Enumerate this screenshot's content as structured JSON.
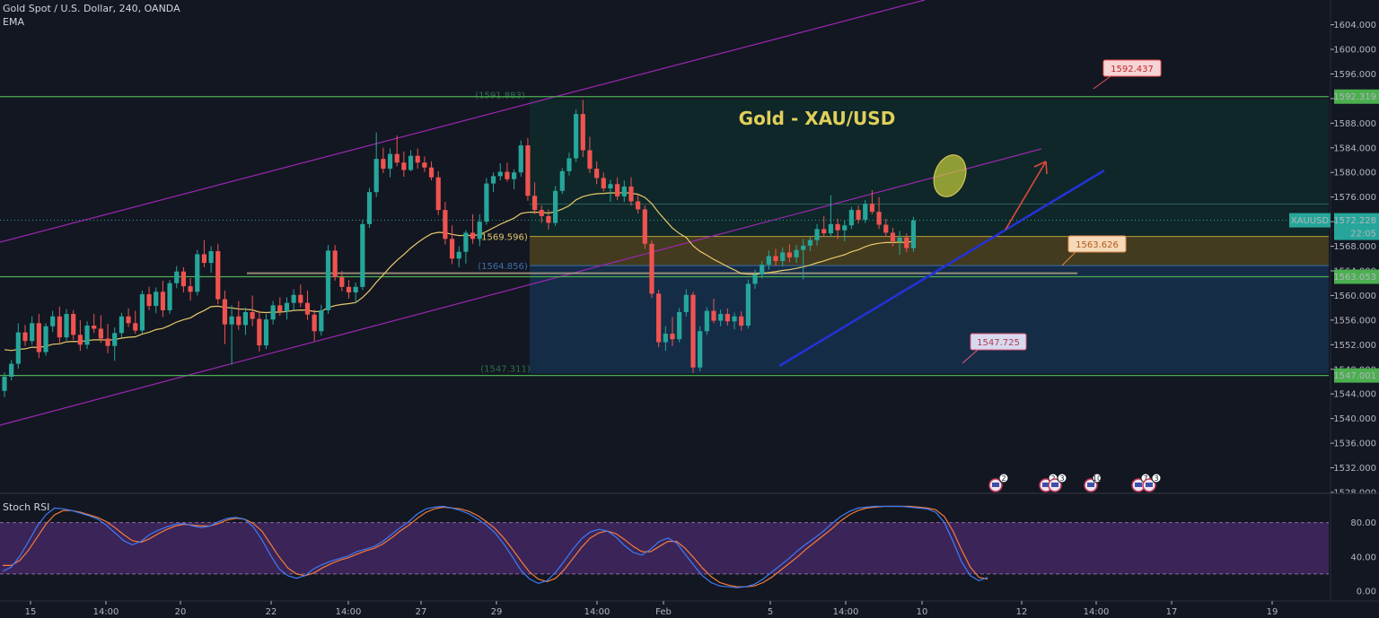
{
  "header": {
    "symbol_line": "Gold Spot / U.S. Dollar, 240, OANDA",
    "indicator": "EMA"
  },
  "rsi_panel": {
    "label": "Stoch RSI"
  },
  "colors": {
    "background": "#131722",
    "up": "#26a69a",
    "down": "#ef5350",
    "ema": "#e8c96a",
    "channel": "#9c27b0",
    "support": "#4caf50",
    "trendline": "#2432d6",
    "arrow": "#e0493a",
    "title": "#e0cf5a"
  },
  "chart_data": [
    {
      "type": "candlestick",
      "title": "Gold - XAU/USD",
      "price_axis": {
        "ticks": [
          "1604.000",
          "1600.000",
          "1596.000",
          "1592.000",
          "1588.000",
          "1584.000",
          "1580.000",
          "1576.000",
          "1572.000",
          "1568.000",
          "1564.000",
          "1560.000",
          "1556.000",
          "1552.000",
          "1548.000",
          "1544.000",
          "1540.000",
          "1536.000",
          "1532.000",
          "1528.000"
        ],
        "range": [
          1526,
          1606
        ]
      },
      "time_axis": {
        "ticks": [
          "15",
          "14:00",
          "20",
          "22",
          "14:00",
          "27",
          "29",
          "14:00",
          "Feb",
          "5",
          "14:00",
          "10",
          "12",
          "14:00",
          "17",
          "19"
        ]
      },
      "symbol_tag": {
        "label": "XAUUSD",
        "price": "1572.228",
        "countdown": "22:05"
      },
      "horizontal_levels": [
        {
          "price": 1592.319,
          "label": "1592.319"
        },
        {
          "price": 1563.053,
          "label": "1563.053"
        },
        {
          "price": 1547.001,
          "label": "1547.001"
        }
      ],
      "callouts": [
        {
          "label": "1592.437"
        },
        {
          "label": "1563.626"
        },
        {
          "label": "1547.725"
        }
      ],
      "range_labels": [
        {
          "label": "(1591.883)"
        },
        {
          "label": "(1569.596)"
        },
        {
          "label": "(1564.856)"
        },
        {
          "label": "(1547.311)"
        }
      ],
      "events": [
        {
          "count": "2"
        },
        {
          "count": "2"
        },
        {
          "count": "3"
        },
        {
          "count": "10"
        },
        {
          "count": "7"
        },
        {
          "count": "3"
        }
      ],
      "candles": [
        [
          1544.5,
          1547.5,
          1543.5,
          1546.8
        ],
        [
          1546.8,
          1549.5,
          1546.2,
          1548.9
        ],
        [
          1548.9,
          1555.5,
          1548.1,
          1554.0
        ],
        [
          1554.0,
          1555.2,
          1551.8,
          1552.6
        ],
        [
          1552.6,
          1556.6,
          1552.0,
          1555.5
        ],
        [
          1555.5,
          1557.0,
          1549.8,
          1550.8
        ],
        [
          1550.8,
          1555.5,
          1550.2,
          1555.0
        ],
        [
          1555.0,
          1557.5,
          1554.1,
          1556.6
        ],
        [
          1556.6,
          1558.2,
          1552.3,
          1553.2
        ],
        [
          1553.2,
          1557.8,
          1552.7,
          1557.0
        ],
        [
          1557.0,
          1557.6,
          1552.8,
          1553.6
        ],
        [
          1553.6,
          1556.0,
          1551.0,
          1552.0
        ],
        [
          1552.0,
          1555.8,
          1551.3,
          1555.1
        ],
        [
          1555.1,
          1557.0,
          1553.9,
          1554.6
        ],
        [
          1554.6,
          1556.8,
          1552.3,
          1553.0
        ],
        [
          1553.0,
          1555.4,
          1550.6,
          1551.8
        ],
        [
          1551.8,
          1554.8,
          1549.4,
          1553.9
        ],
        [
          1553.9,
          1557.2,
          1553.2,
          1556.6
        ],
        [
          1556.6,
          1557.9,
          1554.9,
          1555.5
        ],
        [
          1555.5,
          1557.5,
          1553.8,
          1554.3
        ],
        [
          1554.3,
          1560.8,
          1553.8,
          1560.2
        ],
        [
          1560.2,
          1561.4,
          1557.6,
          1558.3
        ],
        [
          1558.3,
          1561.3,
          1557.1,
          1560.6
        ],
        [
          1560.6,
          1562.4,
          1556.5,
          1557.6
        ],
        [
          1557.6,
          1562.5,
          1557.0,
          1562.0
        ],
        [
          1562.0,
          1564.8,
          1561.2,
          1563.9
        ],
        [
          1563.9,
          1564.6,
          1560.5,
          1561.5
        ],
        [
          1561.5,
          1562.8,
          1559.2,
          1560.6
        ],
        [
          1560.6,
          1567.4,
          1560.0,
          1566.7
        ],
        [
          1566.7,
          1569.0,
          1564.6,
          1565.3
        ],
        [
          1565.3,
          1568.0,
          1563.7,
          1567.2
        ],
        [
          1567.2,
          1568.4,
          1558.6,
          1559.4
        ],
        [
          1559.4,
          1560.8,
          1552.1,
          1555.3
        ],
        [
          1555.3,
          1558.4,
          1548.8,
          1556.6
        ],
        [
          1556.6,
          1559.1,
          1554.4,
          1555.2
        ],
        [
          1555.2,
          1558.0,
          1553.6,
          1557.3
        ],
        [
          1557.3,
          1560.0,
          1555.0,
          1556.2
        ],
        [
          1556.2,
          1557.5,
          1550.9,
          1551.9
        ],
        [
          1551.9,
          1557.0,
          1551.3,
          1556.1
        ],
        [
          1556.1,
          1559.1,
          1555.3,
          1558.4
        ],
        [
          1558.4,
          1559.7,
          1556.7,
          1557.4
        ],
        [
          1557.4,
          1559.7,
          1556.1,
          1558.8
        ],
        [
          1558.8,
          1561.0,
          1557.6,
          1560.1
        ],
        [
          1560.1,
          1561.8,
          1558.1,
          1558.8
        ],
        [
          1558.8,
          1560.8,
          1556.0,
          1556.9
        ],
        [
          1556.9,
          1557.7,
          1552.6,
          1554.2
        ],
        [
          1554.2,
          1558.5,
          1553.5,
          1557.6
        ],
        [
          1557.6,
          1568.2,
          1557.0,
          1567.3
        ],
        [
          1567.3,
          1568.2,
          1562.4,
          1563.0
        ],
        [
          1563.0,
          1564.0,
          1560.7,
          1561.4
        ],
        [
          1561.4,
          1562.5,
          1559.5,
          1560.5
        ],
        [
          1560.5,
          1562.1,
          1558.8,
          1561.4
        ],
        [
          1561.4,
          1572.3,
          1560.9,
          1571.6
        ],
        [
          1571.6,
          1577.5,
          1571.0,
          1576.8
        ],
        [
          1576.8,
          1586.5,
          1576.0,
          1582.2
        ],
        [
          1582.2,
          1584.0,
          1579.9,
          1580.6
        ],
        [
          1580.6,
          1583.9,
          1579.2,
          1583.0
        ],
        [
          1583.0,
          1586.0,
          1581.0,
          1581.6
        ],
        [
          1581.6,
          1583.4,
          1579.3,
          1580.4
        ],
        [
          1580.4,
          1583.6,
          1580.2,
          1582.7
        ],
        [
          1582.7,
          1583.9,
          1580.6,
          1581.6
        ],
        [
          1581.6,
          1582.6,
          1580.1,
          1580.8
        ],
        [
          1580.8,
          1581.8,
          1578.7,
          1579.2
        ],
        [
          1579.2,
          1580.2,
          1573.1,
          1573.9
        ],
        [
          1573.9,
          1575.2,
          1568.3,
          1569.2
        ],
        [
          1569.2,
          1571.4,
          1565.1,
          1566.0
        ],
        [
          1566.0,
          1568.0,
          1564.6,
          1567.1
        ],
        [
          1567.1,
          1570.6,
          1565.2,
          1570.2
        ],
        [
          1570.2,
          1573.2,
          1568.4,
          1569.2
        ],
        [
          1569.2,
          1573.2,
          1568.0,
          1572.0
        ],
        [
          1572.0,
          1579.1,
          1571.5,
          1578.2
        ],
        [
          1578.2,
          1580.0,
          1576.8,
          1579.4
        ],
        [
          1579.4,
          1581.5,
          1578.7,
          1580.1
        ],
        [
          1580.1,
          1581.6,
          1578.5,
          1578.9
        ],
        [
          1578.9,
          1580.5,
          1577.3,
          1580.0
        ],
        [
          1580.0,
          1585.2,
          1579.3,
          1584.4
        ],
        [
          1584.4,
          1585.6,
          1575.4,
          1576.2
        ],
        [
          1576.2,
          1578.4,
          1573.2,
          1573.9
        ],
        [
          1573.9,
          1574.6,
          1571.8,
          1572.9
        ],
        [
          1572.9,
          1574.0,
          1570.7,
          1571.8
        ],
        [
          1571.8,
          1577.8,
          1571.3,
          1577.0
        ],
        [
          1577.0,
          1580.7,
          1576.5,
          1580.2
        ],
        [
          1580.2,
          1583.2,
          1579.5,
          1582.3
        ],
        [
          1582.3,
          1590.2,
          1581.7,
          1589.5
        ],
        [
          1589.5,
          1591.8,
          1582.5,
          1583.6
        ],
        [
          1583.6,
          1585.8,
          1579.9,
          1580.6
        ],
        [
          1580.6,
          1581.8,
          1578.1,
          1579.1
        ],
        [
          1579.1,
          1580.0,
          1576.9,
          1577.4
        ],
        [
          1577.4,
          1578.8,
          1575.2,
          1578.1
        ],
        [
          1578.1,
          1579.2,
          1575.5,
          1576.1
        ],
        [
          1576.1,
          1578.7,
          1575.2,
          1577.7
        ],
        [
          1577.7,
          1579.2,
          1574.6,
          1575.3
        ],
        [
          1575.3,
          1576.4,
          1573.3,
          1574.0
        ],
        [
          1574.0,
          1574.6,
          1567.6,
          1568.4
        ],
        [
          1568.4,
          1568.9,
          1559.6,
          1560.3
        ],
        [
          1560.3,
          1560.9,
          1551.6,
          1552.4
        ],
        [
          1552.4,
          1555.0,
          1551.0,
          1553.8
        ],
        [
          1553.8,
          1556.5,
          1551.8,
          1552.9
        ],
        [
          1552.9,
          1558.0,
          1552.4,
          1557.3
        ],
        [
          1557.3,
          1561.0,
          1556.6,
          1560.1
        ],
        [
          1560.1,
          1560.6,
          1547.4,
          1548.3
        ],
        [
          1548.3,
          1555.0,
          1547.7,
          1554.2
        ],
        [
          1554.2,
          1558.1,
          1553.6,
          1557.5
        ],
        [
          1557.5,
          1559.5,
          1555.5,
          1555.9
        ],
        [
          1555.9,
          1557.7,
          1555.0,
          1557.0
        ],
        [
          1557.0,
          1557.9,
          1555.1,
          1555.8
        ],
        [
          1555.8,
          1557.2,
          1554.5,
          1556.6
        ],
        [
          1556.6,
          1557.4,
          1554.3,
          1555.1
        ],
        [
          1555.1,
          1562.6,
          1554.6,
          1561.9
        ],
        [
          1561.9,
          1564.2,
          1561.1,
          1563.4
        ],
        [
          1563.4,
          1565.6,
          1562.8,
          1565.0
        ],
        [
          1565.0,
          1567.3,
          1564.2,
          1566.4
        ],
        [
          1566.4,
          1567.6,
          1564.8,
          1565.6
        ],
        [
          1565.6,
          1567.8,
          1564.7,
          1567.0
        ],
        [
          1567.0,
          1568.3,
          1565.4,
          1566.2
        ],
        [
          1566.2,
          1568.2,
          1565.3,
          1567.4
        ],
        [
          1567.4,
          1569.2,
          1562.6,
          1568.1
        ],
        [
          1568.1,
          1569.6,
          1567.2,
          1569.0
        ],
        [
          1569.0,
          1571.6,
          1568.1,
          1570.8
        ],
        [
          1570.8,
          1572.9,
          1569.5,
          1570.1
        ],
        [
          1570.1,
          1576.3,
          1569.5,
          1571.6
        ],
        [
          1571.6,
          1572.5,
          1569.2,
          1570.6
        ],
        [
          1570.6,
          1572.3,
          1568.8,
          1571.4
        ],
        [
          1571.4,
          1574.4,
          1570.8,
          1573.9
        ],
        [
          1573.9,
          1574.6,
          1571.7,
          1572.3
        ],
        [
          1572.3,
          1575.5,
          1571.8,
          1574.9
        ],
        [
          1574.9,
          1577.1,
          1573.2,
          1573.6
        ],
        [
          1573.6,
          1576.0,
          1570.8,
          1571.5
        ],
        [
          1571.5,
          1572.5,
          1569.5,
          1570.2
        ],
        [
          1570.2,
          1571.0,
          1568.0,
          1568.8
        ],
        [
          1568.8,
          1570.5,
          1566.6,
          1569.4
        ],
        [
          1569.4,
          1570.1,
          1567.0,
          1567.7
        ],
        [
          1567.7,
          1572.8,
          1567.1,
          1572.2
        ]
      ],
      "stoch_rsi": {
        "axis_ticks": [
          "80.00",
          "40.00",
          "0.00"
        ],
        "bands": [
          20,
          80
        ],
        "k": [
          23,
          28,
          41,
          58,
          76,
          89,
          97,
          96,
          94,
          91,
          88,
          84,
          77,
          68,
          59,
          54,
          58,
          66,
          71,
          75,
          78,
          79,
          76,
          74,
          76,
          81,
          85,
          86,
          84,
          75,
          60,
          42,
          26,
          18,
          15,
          18,
          26,
          31,
          35,
          38,
          41,
          46,
          49,
          52,
          58,
          66,
          74,
          81,
          90,
          96,
          98,
          99,
          97,
          94,
          90,
          84,
          77,
          68,
          55,
          40,
          24,
          14,
          9,
          12,
          22,
          35,
          49,
          61,
          69,
          72,
          70,
          63,
          53,
          45,
          42,
          49,
          58,
          62,
          56,
          43,
          30,
          18,
          10,
          6,
          5,
          4,
          5,
          8,
          14,
          22,
          30,
          38,
          47,
          55,
          62,
          70,
          79,
          87,
          93,
          97,
          98,
          99,
          99,
          99,
          99,
          98,
          97,
          96,
          92,
          80,
          58,
          34,
          18,
          12,
          16
        ],
        "d": [
          30,
          30,
          36,
          48,
          63,
          78,
          89,
          94,
          94,
          92,
          89,
          86,
          81,
          74,
          66,
          59,
          57,
          61,
          67,
          72,
          76,
          78,
          77,
          76,
          76,
          79,
          83,
          85,
          84,
          79,
          70,
          55,
          40,
          27,
          20,
          18,
          21,
          27,
          32,
          36,
          39,
          43,
          47,
          50,
          55,
          62,
          70,
          77,
          85,
          92,
          96,
          98,
          97,
          96,
          93,
          88,
          81,
          73,
          62,
          49,
          35,
          22,
          14,
          11,
          15,
          25,
          38,
          51,
          62,
          68,
          70,
          67,
          60,
          52,
          46,
          46,
          52,
          58,
          58,
          50,
          39,
          27,
          17,
          10,
          7,
          5,
          5,
          6,
          10,
          16,
          24,
          32,
          40,
          49,
          57,
          65,
          73,
          82,
          89,
          94,
          97,
          98,
          99,
          99,
          99,
          99,
          98,
          97,
          95,
          87,
          70,
          48,
          28,
          16,
          14
        ]
      }
    }
  ]
}
